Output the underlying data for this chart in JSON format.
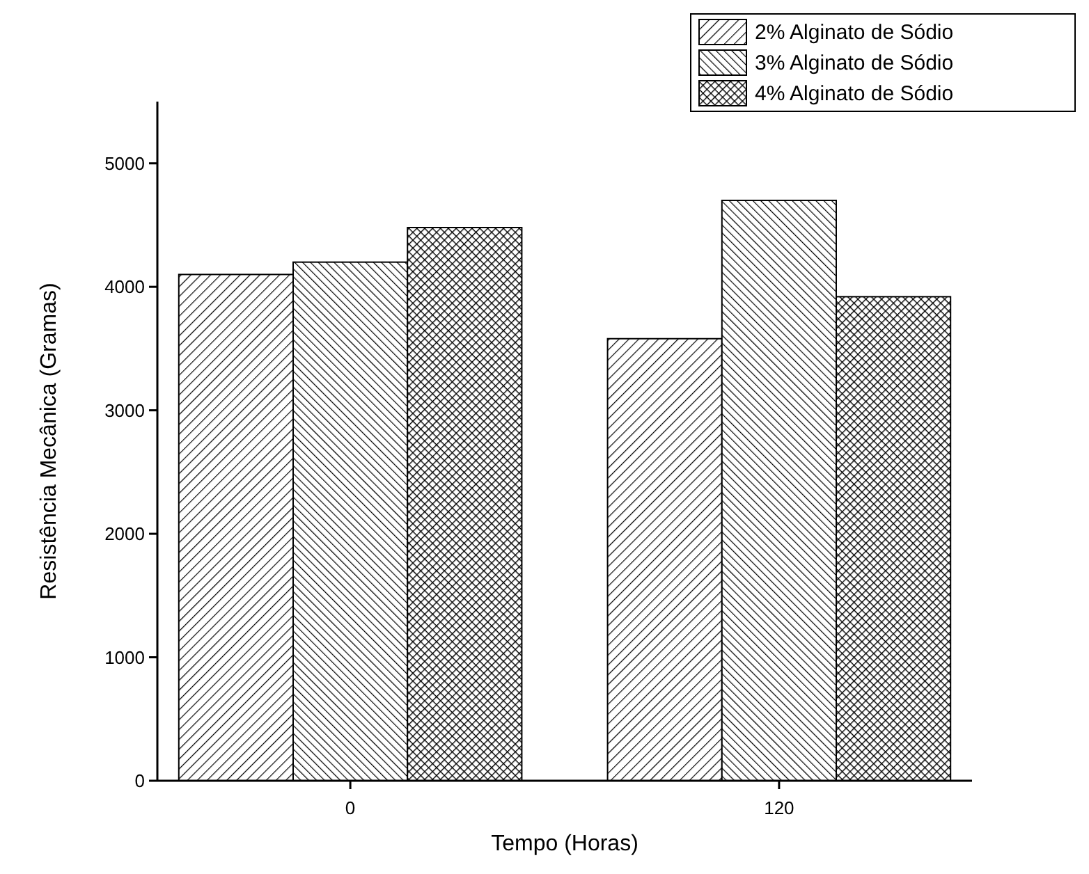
{
  "chart_data": {
    "type": "bar",
    "xlabel": "Tempo (Horas)",
    "ylabel": "Resistência Mecânica (Gramas)",
    "categories": [
      "0",
      "120"
    ],
    "series": [
      {
        "name": "2% Alginato de Sódio",
        "color": "#000000",
        "values": [
          4100,
          3580
        ]
      },
      {
        "name": "3% Alginato de Sódio",
        "color": "#000000",
        "values": [
          4200,
          4700
        ]
      },
      {
        "name": "4% Alginato de Sódio",
        "color": "#000000",
        "values": [
          4480,
          3920
        ]
      }
    ],
    "ylim": [
      0,
      5500
    ],
    "yticks": [
      0,
      1000,
      2000,
      3000,
      4000,
      5000
    ],
    "grid": false,
    "legend": "top right"
  }
}
